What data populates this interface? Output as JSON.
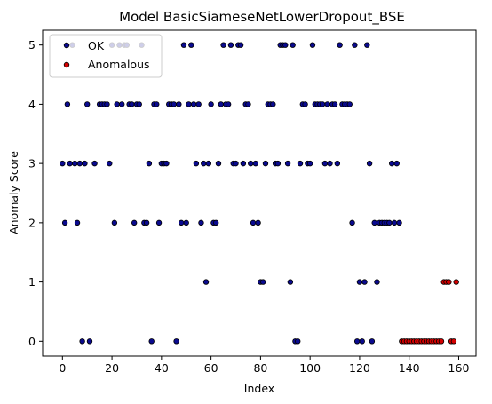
{
  "chart_data": {
    "type": "scatter",
    "title": "Model BasicSiameseNetLowerDropout_BSE",
    "xlabel": "Index",
    "ylabel": "Anomaly Score",
    "xlim": [
      -8,
      167
    ],
    "ylim": [
      -0.25,
      5.25
    ],
    "xticks": [
      0,
      20,
      40,
      60,
      80,
      100,
      120,
      140,
      160
    ],
    "yticks": [
      0,
      1,
      2,
      3,
      4,
      5
    ],
    "legend_position": "upper-left",
    "series": [
      {
        "name": "OK",
        "color": "#0a0a8f",
        "points": [
          [
            0,
            3
          ],
          [
            1,
            2
          ],
          [
            2,
            4
          ],
          [
            3,
            3
          ],
          [
            4,
            5
          ],
          [
            5,
            3
          ],
          [
            6,
            2
          ],
          [
            7,
            3
          ],
          [
            8,
            0
          ],
          [
            9,
            3
          ],
          [
            10,
            4
          ],
          [
            11,
            0
          ],
          [
            13,
            3
          ],
          [
            15,
            4
          ],
          [
            16,
            4
          ],
          [
            17,
            4
          ],
          [
            18,
            4
          ],
          [
            19,
            3
          ],
          [
            20,
            5
          ],
          [
            21,
            2
          ],
          [
            22,
            4
          ],
          [
            23,
            5
          ],
          [
            24,
            4
          ],
          [
            25,
            5
          ],
          [
            26,
            5
          ],
          [
            27,
            4
          ],
          [
            28,
            4
          ],
          [
            29,
            2
          ],
          [
            30,
            4
          ],
          [
            31,
            4
          ],
          [
            32,
            5
          ],
          [
            33,
            2
          ],
          [
            34,
            2
          ],
          [
            35,
            3
          ],
          [
            36,
            0
          ],
          [
            37,
            4
          ],
          [
            38,
            4
          ],
          [
            39,
            2
          ],
          [
            40,
            3
          ],
          [
            41,
            3
          ],
          [
            42,
            3
          ],
          [
            43,
            4
          ],
          [
            44,
            4
          ],
          [
            45,
            4
          ],
          [
            46,
            0
          ],
          [
            47,
            4
          ],
          [
            48,
            2
          ],
          [
            49,
            5
          ],
          [
            50,
            2
          ],
          [
            51,
            4
          ],
          [
            52,
            5
          ],
          [
            53,
            4
          ],
          [
            54,
            3
          ],
          [
            55,
            4
          ],
          [
            56,
            2
          ],
          [
            57,
            3
          ],
          [
            58,
            1
          ],
          [
            59,
            3
          ],
          [
            60,
            4
          ],
          [
            61,
            2
          ],
          [
            62,
            2
          ],
          [
            63,
            3
          ],
          [
            64,
            4
          ],
          [
            65,
            5
          ],
          [
            66,
            4
          ],
          [
            67,
            4
          ],
          [
            68,
            5
          ],
          [
            69,
            3
          ],
          [
            70,
            3
          ],
          [
            71,
            5
          ],
          [
            72,
            5
          ],
          [
            73,
            3
          ],
          [
            74,
            4
          ],
          [
            75,
            4
          ],
          [
            76,
            3
          ],
          [
            77,
            2
          ],
          [
            78,
            3
          ],
          [
            79,
            2
          ],
          [
            80,
            1
          ],
          [
            81,
            1
          ],
          [
            82,
            3
          ],
          [
            83,
            4
          ],
          [
            84,
            4
          ],
          [
            85,
            4
          ],
          [
            86,
            3
          ],
          [
            87,
            3
          ],
          [
            88,
            5
          ],
          [
            89,
            5
          ],
          [
            90,
            5
          ],
          [
            91,
            3
          ],
          [
            92,
            1
          ],
          [
            93,
            5
          ],
          [
            94,
            0
          ],
          [
            95,
            0
          ],
          [
            96,
            3
          ],
          [
            97,
            4
          ],
          [
            98,
            4
          ],
          [
            99,
            3
          ],
          [
            100,
            3
          ],
          [
            101,
            5
          ],
          [
            102,
            4
          ],
          [
            103,
            4
          ],
          [
            104,
            4
          ],
          [
            105,
            4
          ],
          [
            106,
            3
          ],
          [
            107,
            4
          ],
          [
            108,
            3
          ],
          [
            109,
            4
          ],
          [
            110,
            4
          ],
          [
            111,
            3
          ],
          [
            112,
            5
          ],
          [
            113,
            4
          ],
          [
            114,
            4
          ],
          [
            115,
            4
          ],
          [
            116,
            4
          ],
          [
            117,
            2
          ],
          [
            118,
            5
          ],
          [
            119,
            0
          ],
          [
            120,
            1
          ],
          [
            121,
            0
          ],
          [
            122,
            1
          ],
          [
            123,
            5
          ],
          [
            124,
            3
          ],
          [
            125,
            0
          ],
          [
            126,
            2
          ],
          [
            127,
            1
          ],
          [
            128,
            2
          ],
          [
            129,
            2
          ],
          [
            130,
            2
          ],
          [
            131,
            2
          ],
          [
            132,
            2
          ],
          [
            133,
            3
          ],
          [
            134,
            2
          ],
          [
            135,
            3
          ],
          [
            136,
            2
          ]
        ]
      },
      {
        "name": "Anomalous",
        "color": "#d40000",
        "points": [
          [
            137,
            0
          ],
          [
            138,
            0
          ],
          [
            139,
            0
          ],
          [
            140,
            0
          ],
          [
            141,
            0
          ],
          [
            142,
            0
          ],
          [
            143,
            0
          ],
          [
            144,
            0
          ],
          [
            145,
            0
          ],
          [
            146,
            0
          ],
          [
            147,
            0
          ],
          [
            148,
            0
          ],
          [
            149,
            0
          ],
          [
            150,
            0
          ],
          [
            151,
            0
          ],
          [
            152,
            0
          ],
          [
            153,
            0
          ],
          [
            154,
            1
          ],
          [
            155,
            1
          ],
          [
            156,
            1
          ],
          [
            157,
            0
          ],
          [
            158,
            0
          ],
          [
            159,
            1
          ]
        ]
      }
    ]
  }
}
